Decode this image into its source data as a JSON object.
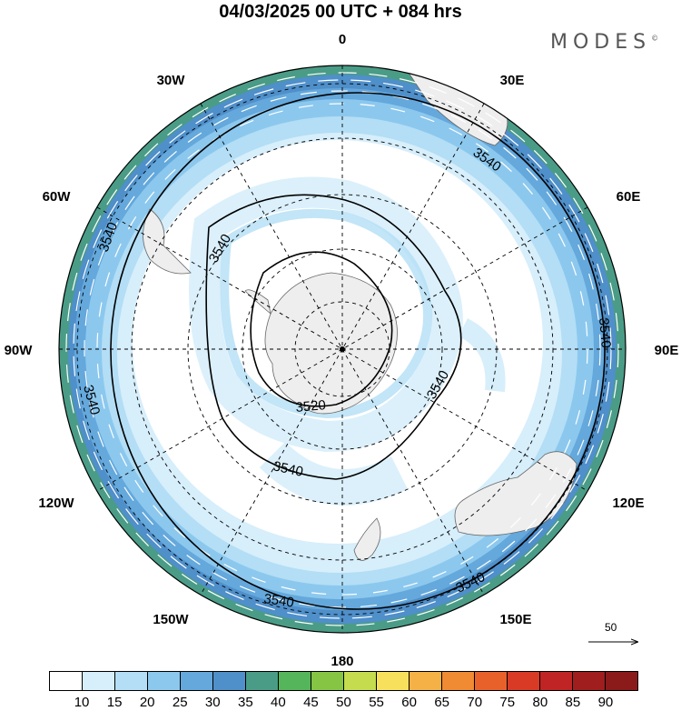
{
  "title": "04/03/2025  00 UTC  + 084 hrs",
  "brand": "MODES",
  "brand_mark": "©",
  "longitude_labels": {
    "top": "0",
    "bottom": "180",
    "w30": "30W",
    "w60": "60W",
    "w90": "90W",
    "w120": "120W",
    "w150": "150W",
    "e30": "30E",
    "e60": "60E",
    "e90": "90E",
    "e120": "120E",
    "e150": "150E"
  },
  "contours": {
    "outer_3540": [
      "3540",
      "3540",
      "3540",
      "3540",
      "3540"
    ],
    "inner_3540": [
      "3540",
      "3540",
      "3540"
    ],
    "inner_3520": "3520"
  },
  "vector_reference": {
    "label": "50",
    "icon": "arrow-right-icon"
  },
  "colorbar": {
    "labels": [
      "10",
      "15",
      "20",
      "25",
      "30",
      "35",
      "40",
      "45",
      "50",
      "55",
      "60",
      "65",
      "70",
      "75",
      "80",
      "85",
      "90"
    ],
    "colors": [
      "#ffffff",
      "#d7eefb",
      "#b3def5",
      "#8cc8ee",
      "#64a8dc",
      "#4f8fca",
      "#4a9c86",
      "#55b55a",
      "#86c543",
      "#c5dc4e",
      "#f7e15c",
      "#f5b145",
      "#f08a33",
      "#e9612a",
      "#d93a26",
      "#c02424",
      "#a11e1e",
      "#8b1a1a"
    ]
  },
  "map_colors": {
    "land": "#eeeeee",
    "band_10": "#ffffff",
    "band_15": "#d7eefb",
    "band_20": "#b3def5",
    "band_25": "#8cc8ee",
    "band_30": "#64a8dc",
    "band_35": "#4f8fca",
    "band_40": "#4a9c86"
  }
}
